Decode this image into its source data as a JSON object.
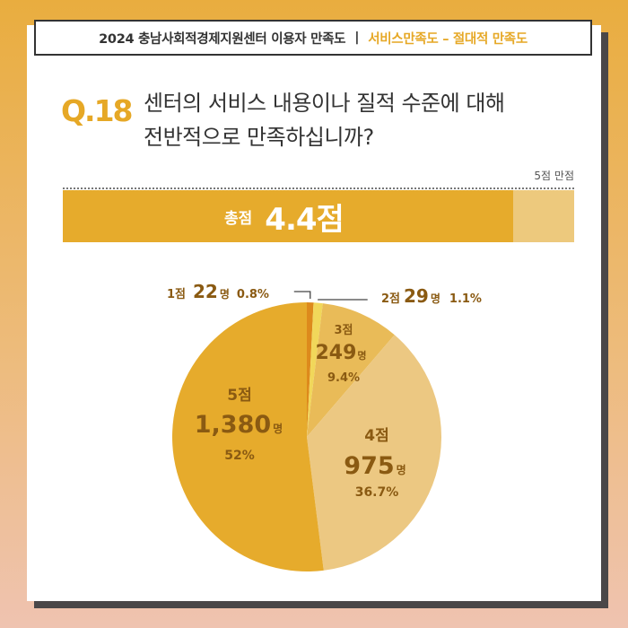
{
  "header": {
    "title": "2024 충남사회적경제지원센터 이용자 만족도",
    "separator": "|",
    "subtitle": "서비스만족도 – 절대적 만족도"
  },
  "question": {
    "number": "Q.18",
    "text_line1": "센터의 서비스 내용이나 질적 수준에 대해",
    "text_line2": "전반적으로 만족하십니까?"
  },
  "score_bar": {
    "max_note": "5점 만점",
    "label": "총점",
    "value_text": "4.4점",
    "value": 4.4,
    "max": 5
  },
  "colors": {
    "accent": "#e6a826",
    "bar_track": "#edc97d",
    "label_brown": "#8a5a12",
    "white_label": "#ffffff"
  },
  "chart_data": {
    "type": "pie",
    "start_angle_deg": 0,
    "direction": "clockwise",
    "slices": [
      {
        "score": "1점",
        "count": 22,
        "count_text": "22",
        "unit": "명",
        "percent": 0.8,
        "percent_text": "0.8%",
        "color": "#dd8a1c"
      },
      {
        "score": "2점",
        "count": 29,
        "count_text": "29",
        "unit": "명",
        "percent": 1.1,
        "percent_text": "1.1%",
        "color": "#f1d75a"
      },
      {
        "score": "3점",
        "count": 249,
        "count_text": "249",
        "unit": "명",
        "percent": 9.4,
        "percent_text": "9.4%",
        "color": "#e9bb58"
      },
      {
        "score": "4점",
        "count": 975,
        "count_text": "975",
        "unit": "명",
        "percent": 36.7,
        "percent_text": "36.7%",
        "color": "#ecc882"
      },
      {
        "score": "5점",
        "count": 1380,
        "count_text": "1,380",
        "unit": "명",
        "percent": 52,
        "percent_text": "52%",
        "color": "#e6ab2c"
      }
    ]
  }
}
